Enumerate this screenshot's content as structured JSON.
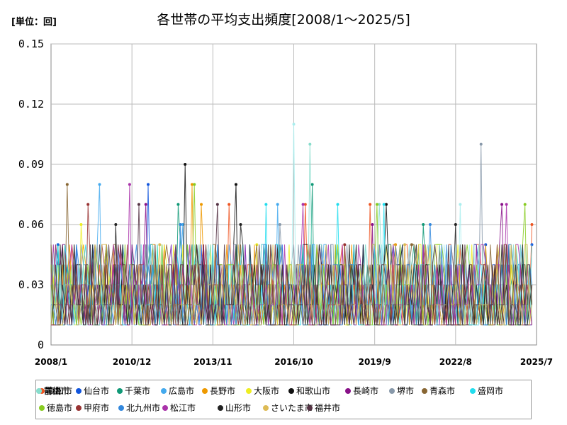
{
  "unit_label": "[単位：回]",
  "chart_data": {
    "type": "line",
    "title": "各世帯の平均支出頻度[2008/1～2025/5]",
    "xlabel": "",
    "ylabel": "",
    "x_tick_labels": [
      "2008/1",
      "2010/12",
      "2013/11",
      "2016/10",
      "2019/9",
      "2022/8",
      "2025/7"
    ],
    "y_tick_labels": [
      "0",
      "0.03",
      "0.06",
      "0.09",
      "0.12",
      "0.15"
    ],
    "ylim": [
      0,
      0.15
    ],
    "xlim": [
      "2008/1",
      "2025/7"
    ],
    "grid": true,
    "legend_position": "bottom",
    "series": [
      {
        "name": "高松市",
        "color": "#ee5522",
        "baseline": 0.02,
        "peaks": [
          [
            "2014/6",
            0.07
          ],
          [
            "2017/3",
            0.07
          ],
          [
            "2019/7",
            0.07
          ],
          [
            "2025/5",
            0.06
          ]
        ]
      },
      {
        "name": "仙台市",
        "color": "#1155dd",
        "baseline": 0.02,
        "peaks": [
          [
            "2008/4",
            0.05
          ],
          [
            "2011/7",
            0.08
          ],
          [
            "2023/9",
            0.05
          ],
          [
            "2025/5",
            0.05
          ]
        ]
      },
      {
        "name": "千葉市",
        "color": "#119977",
        "baseline": 0.02,
        "peaks": [
          [
            "2012/8",
            0.07
          ],
          [
            "2017/6",
            0.08
          ],
          [
            "2021/6",
            0.06
          ]
        ]
      },
      {
        "name": "広島市",
        "color": "#44aaee",
        "baseline": 0.02,
        "peaks": [
          [
            "2009/10",
            0.08
          ],
          [
            "2012/10",
            0.06
          ],
          [
            "2016/3",
            0.07
          ]
        ]
      },
      {
        "name": "長野市",
        "color": "#ee9900",
        "baseline": 0.02,
        "peaks": [
          [
            "2013/2",
            0.08
          ],
          [
            "2013/6",
            0.07
          ],
          [
            "2020/6",
            0.05
          ]
        ]
      },
      {
        "name": "大阪市",
        "color": "#eeee22",
        "baseline": 0.02,
        "peaks": [
          [
            "2009/2",
            0.06
          ],
          [
            "2015/6",
            0.05
          ]
        ]
      },
      {
        "name": "和歌山市",
        "color": "#111111",
        "baseline": 0.02,
        "peaks": [
          [
            "2012/11",
            0.09
          ],
          [
            "2014/9",
            0.08
          ],
          [
            "2020/2",
            0.07
          ]
        ]
      },
      {
        "name": "長崎市",
        "color": "#881188",
        "baseline": 0.02,
        "peaks": [
          [
            "2011/6",
            0.07
          ],
          [
            "2019/8",
            0.06
          ],
          [
            "2024/4",
            0.07
          ]
        ]
      },
      {
        "name": "堺市",
        "color": "#8899aa",
        "baseline": 0.02,
        "peaks": [
          [
            "2023/7",
            0.1
          ],
          [
            "2016/4",
            0.06
          ]
        ]
      },
      {
        "name": "青森市",
        "color": "#886633",
        "baseline": 0.02,
        "peaks": [
          [
            "2008/8",
            0.08
          ],
          [
            "2021/1",
            0.05
          ]
        ]
      },
      {
        "name": "盛岡市",
        "color": "#22ddee",
        "baseline": 0.02,
        "peaks": [
          [
            "2015/10",
            0.07
          ],
          [
            "2018/5",
            0.07
          ],
          [
            "2020/1",
            0.07
          ]
        ]
      },
      {
        "name": "前橋市",
        "color": "#aaeeee",
        "baseline": 0.02,
        "peaks": [
          [
            "2016/10",
            0.11
          ],
          [
            "2022/10",
            0.07
          ]
        ]
      },
      {
        "name": "富山市",
        "color": "#88ddcc",
        "baseline": 0.02,
        "peaks": [
          [
            "2017/5",
            0.1
          ],
          [
            "2019/11",
            0.07
          ]
        ]
      },
      {
        "name": "徳島市",
        "color": "#88cc22",
        "baseline": 0.02,
        "peaks": [
          [
            "2013/3",
            0.08
          ],
          [
            "2019/10",
            0.07
          ],
          [
            "2025/2",
            0.07
          ]
        ]
      },
      {
        "name": "甲府市",
        "color": "#993333",
        "baseline": 0.02,
        "peaks": [
          [
            "2009/5",
            0.07
          ],
          [
            "2018/8",
            0.05
          ]
        ]
      },
      {
        "name": "北九州市",
        "color": "#3388dd",
        "baseline": 0.02,
        "peaks": [
          [
            "2012/9",
            0.06
          ],
          [
            "2021/9",
            0.06
          ]
        ]
      },
      {
        "name": "松江市",
        "color": "#aa33aa",
        "baseline": 0.02,
        "peaks": [
          [
            "2010/11",
            0.08
          ],
          [
            "2017/2",
            0.07
          ],
          [
            "2024/6",
            0.07
          ]
        ]
      },
      {
        "name": "山形市",
        "color": "#222222",
        "baseline": 0.02,
        "peaks": [
          [
            "2010/5",
            0.06
          ],
          [
            "2014/11",
            0.06
          ],
          [
            "2022/8",
            0.06
          ]
        ]
      },
      {
        "name": "さいたま市",
        "color": "#ddbb55",
        "baseline": 0.02,
        "peaks": [
          [
            "2011/12",
            0.05
          ],
          [
            "2020/10",
            0.05
          ]
        ]
      },
      {
        "name": "福井市",
        "color": "#553344",
        "baseline": 0.02,
        "peaks": [
          [
            "2011/3",
            0.07
          ],
          [
            "2014/1",
            0.07
          ]
        ]
      }
    ]
  }
}
